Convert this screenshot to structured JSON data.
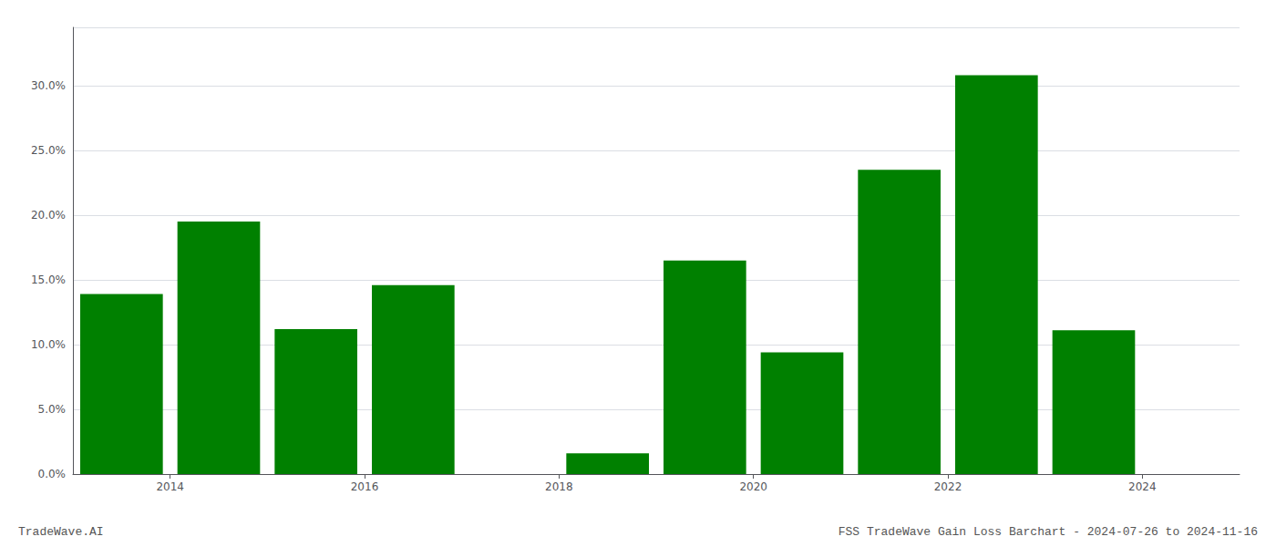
{
  "chart_data": {
    "type": "bar",
    "x": [
      2013,
      2014,
      2015,
      2016,
      2017,
      2018,
      2019,
      2020,
      2021,
      2022,
      2023
    ],
    "values": [
      0.139,
      0.195,
      0.112,
      0.146,
      0.0,
      0.016,
      0.165,
      0.094,
      0.235,
      0.308,
      0.111
    ],
    "color": "#008000",
    "xlim": [
      2012.5,
      2024.5
    ],
    "xticks": [
      {
        "value": 2013.5,
        "label": "2014"
      },
      {
        "value": 2015.5,
        "label": "2016"
      },
      {
        "value": 2017.5,
        "label": "2018"
      },
      {
        "value": 2019.5,
        "label": "2020"
      },
      {
        "value": 2021.5,
        "label": "2022"
      },
      {
        "value": 2023.5,
        "label": "2024"
      }
    ],
    "ylim": [
      0,
      0.345
    ],
    "yticks": [
      {
        "value": 0.0,
        "label": "0.0%"
      },
      {
        "value": 0.05,
        "label": "5.0%"
      },
      {
        "value": 0.1,
        "label": "10.0%"
      },
      {
        "value": 0.15,
        "label": "15.0%"
      },
      {
        "value": 0.2,
        "label": "20.0%"
      },
      {
        "value": 0.25,
        "label": "25.0%"
      },
      {
        "value": 0.3,
        "label": "30.0%"
      }
    ],
    "grid": true,
    "annotations": [
      "TradeWave.AI",
      "FSS TradeWave Gain Loss Barchart - 2024-07-26 to 2024-11-16"
    ]
  }
}
